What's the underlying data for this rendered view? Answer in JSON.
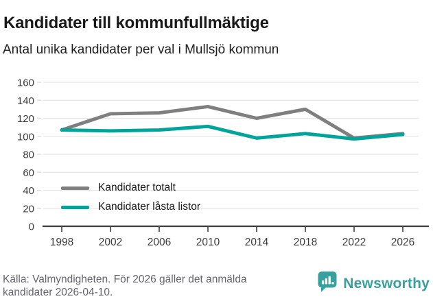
{
  "header": {
    "title": "Kandidater till kommunfullmäktige",
    "subtitle": "Antal unika kandidater per val i Mullsjö kommun"
  },
  "chart_data": {
    "type": "line",
    "title": "Kandidater till kommunfullmäktige",
    "subtitle": "Antal unika kandidater per val i Mullsjö kommun",
    "x": [
      1998,
      2002,
      2006,
      2010,
      2014,
      2018,
      2022,
      2026
    ],
    "series": [
      {
        "name": "Kandidater totalt",
        "color": "#7f7f7f",
        "values": [
          107,
          125,
          126,
          133,
          120,
          130,
          98,
          103
        ]
      },
      {
        "name": "Kandidater låsta listor",
        "color": "#00a49a",
        "values": [
          107,
          106,
          107,
          111,
          98,
          103,
          97,
          102
        ]
      }
    ],
    "ylim": [
      0,
      160
    ],
    "ytick_step": 20,
    "grid": "horizontal",
    "legend_position": "inside-left-bottom",
    "colors": {
      "gridline": "#e4e4e4",
      "axis": "#3d3d3d",
      "tick_label": "#3d3d3d"
    }
  },
  "footer": {
    "source": "Källa: Valmyndigheten. För 2026 gäller det anmälda kandidater 2026-04-10."
  },
  "logo": {
    "text": "Newsworthy",
    "color": "#38a09e",
    "icon": "bar-chart-speech-bubble-icon"
  }
}
